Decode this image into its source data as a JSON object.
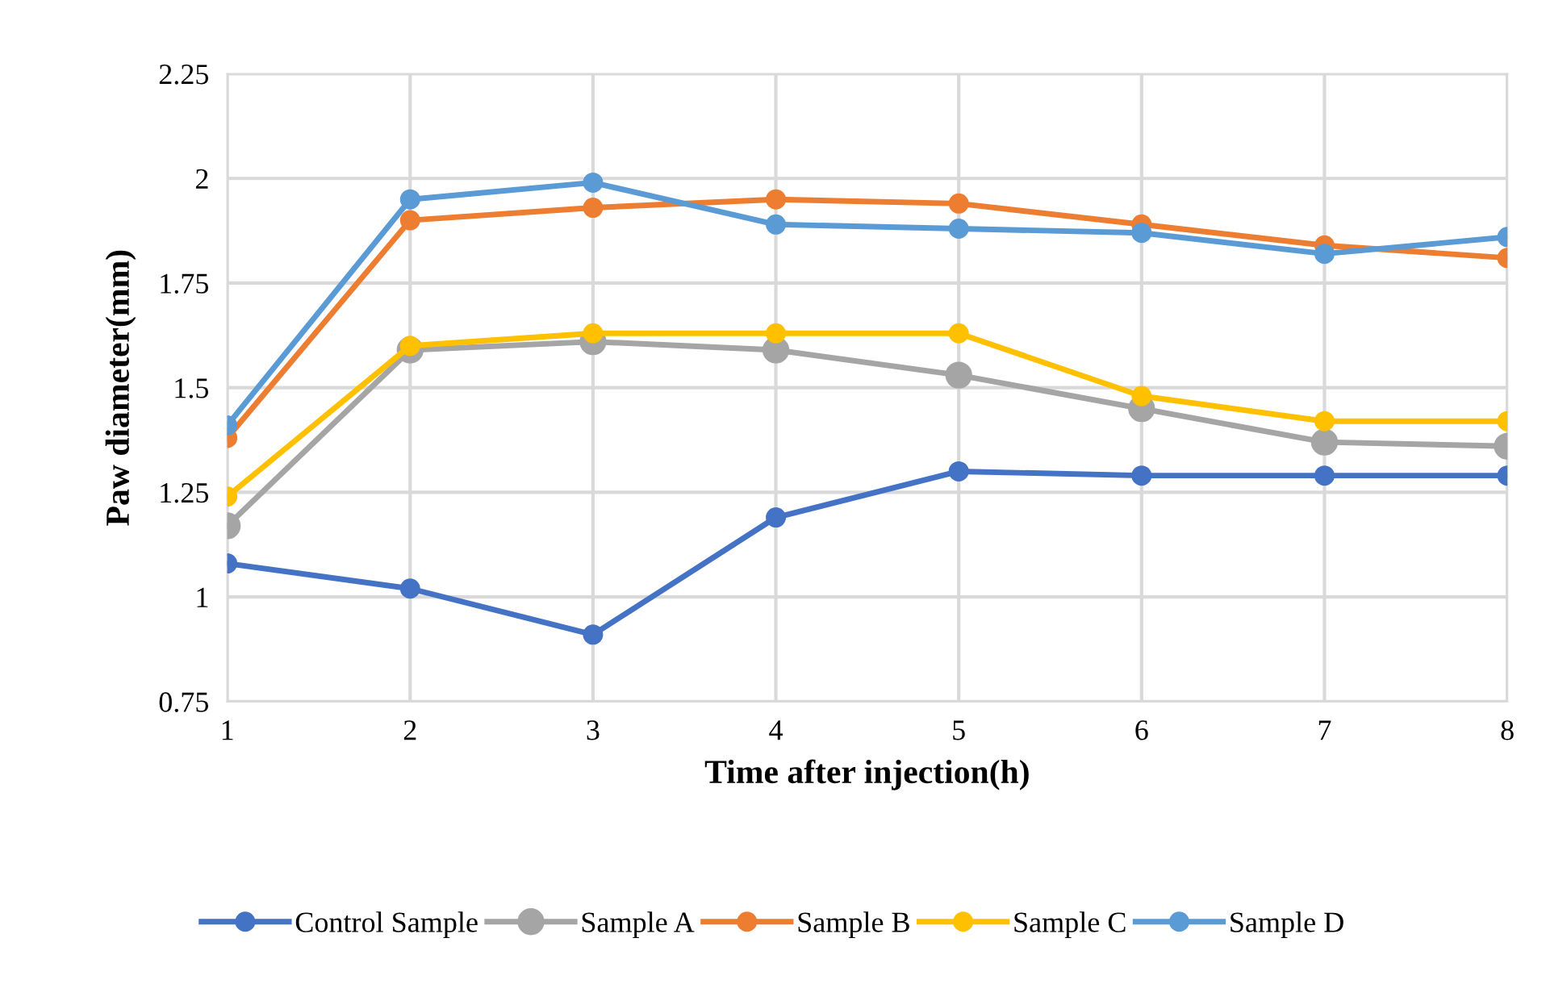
{
  "chart_data": {
    "type": "line",
    "xlabel": "Time after injection(h)",
    "ylabel": "Paw diameter(mm)",
    "x": [
      1,
      2,
      3,
      4,
      5,
      6,
      7,
      8
    ],
    "series": [
      {
        "name": "Control Sample",
        "color": "#4472c4",
        "values": [
          1.08,
          1.02,
          0.91,
          1.19,
          1.3,
          1.29,
          1.29,
          1.29
        ]
      },
      {
        "name": "Sample A",
        "color": "#a5a5a5",
        "values": [
          1.17,
          1.59,
          1.61,
          1.59,
          1.53,
          1.45,
          1.37,
          1.36
        ]
      },
      {
        "name": "Sample B",
        "color": "#ed7d31",
        "values": [
          1.38,
          1.9,
          1.93,
          1.95,
          1.94,
          1.89,
          1.84,
          1.81
        ]
      },
      {
        "name": "Sample C",
        "color": "#ffc000",
        "values": [
          1.24,
          1.6,
          1.63,
          1.63,
          1.63,
          1.48,
          1.42,
          1.42
        ]
      },
      {
        "name": "Sample D",
        "color": "#5b9bd5",
        "values": [
          1.41,
          1.95,
          1.99,
          1.89,
          1.88,
          1.87,
          1.82,
          1.86
        ]
      }
    ],
    "xlim": [
      1,
      8
    ],
    "xticks": [
      1,
      2,
      3,
      4,
      5,
      6,
      7,
      8
    ],
    "ylim": [
      0.75,
      2.25
    ],
    "yticks": [
      0.75,
      1,
      1.25,
      1.5,
      1.75,
      2,
      2.25
    ],
    "grid": true,
    "legend": "bottom",
    "marker": "circle",
    "line_style": "solid"
  }
}
